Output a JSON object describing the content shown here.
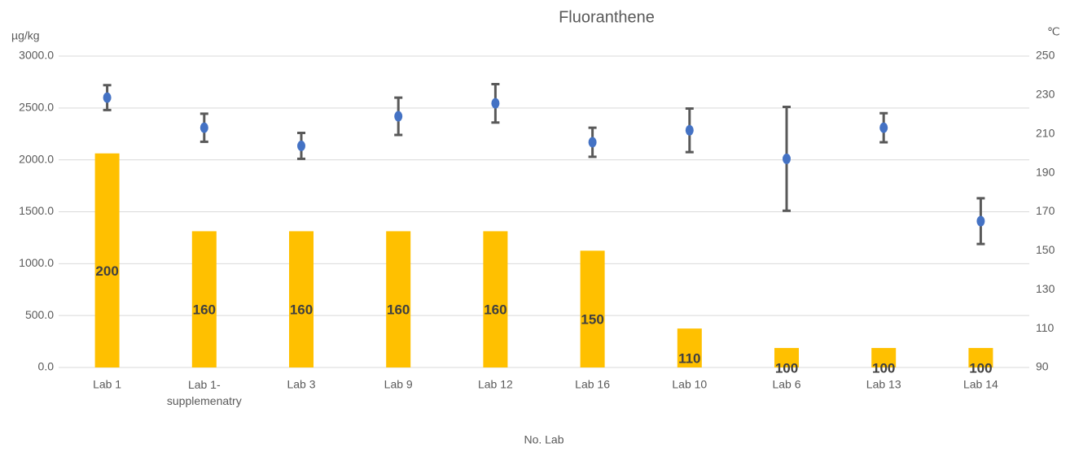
{
  "chart_data": {
    "type": "bar-scatter",
    "title": "Fluoranthene",
    "y_label": "µg/kg",
    "y2_label": "℃",
    "x_label": "No. Lab",
    "categories": [
      "Lab 1",
      "Lab 1-supplemenatry",
      "Lab 3",
      "Lab 9",
      "Lab 12",
      "Lab 16",
      "Lab 10",
      "Lab 6",
      "Lab 13",
      "Lab 14"
    ],
    "series": [
      {
        "kind": "bar",
        "axis": "y2",
        "color": "#ffc000",
        "values": [
          200,
          160,
          160,
          160,
          160,
          150,
          110,
          100,
          100,
          100
        ]
      },
      {
        "kind": "scatter",
        "axis": "y",
        "color": "#4472c4",
        "error_color": "#595959",
        "values": [
          2600,
          2310,
          2135,
          2420,
          2545,
          2170,
          2285,
          2010,
          2310,
          1410
        ],
        "errors": [
          120,
          135,
          125,
          180,
          185,
          140,
          210,
          500,
          140,
          220
        ]
      }
    ],
    "ylim": [
      0,
      3000
    ],
    "yticks": [
      {
        "value": 0,
        "label": "0.0"
      },
      {
        "value": 500,
        "label": "500.0"
      },
      {
        "value": 1000,
        "label": "1000.0"
      },
      {
        "value": 1500,
        "label": "1500.0"
      },
      {
        "value": 2000,
        "label": "2000.0"
      },
      {
        "value": 2500,
        "label": "2500.0"
      },
      {
        "value": 3000,
        "label": "3000.0"
      }
    ],
    "y2lim": [
      90,
      250
    ],
    "y2ticks": [
      90,
      110,
      130,
      150,
      170,
      190,
      210,
      230,
      250
    ],
    "grid": true
  }
}
